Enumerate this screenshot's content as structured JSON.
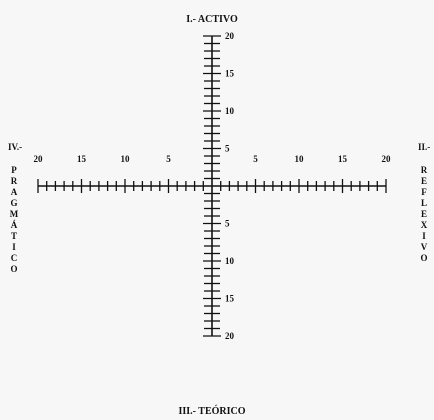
{
  "labels": {
    "top": "I.- ACTIVO",
    "bottom": "III.- TEÓRICO",
    "left_numeral": "IV.-",
    "left_word": "PRAGMÁTICO",
    "right_numeral": "II.-",
    "right_word": "REFLEXIVO"
  },
  "axes": {
    "min": 0,
    "max": 20,
    "minor_step": 1,
    "tick_labels": {
      "top": [
        "5",
        "10",
        "15",
        "20"
      ],
      "bottom": [
        "5",
        "10",
        "15",
        "20"
      ],
      "left": [
        "5",
        "10",
        "15",
        "20"
      ],
      "right": [
        "5",
        "10",
        "15",
        "20"
      ]
    }
  },
  "colors": {
    "ink": "#111111",
    "paper": "#f7f7f7"
  }
}
